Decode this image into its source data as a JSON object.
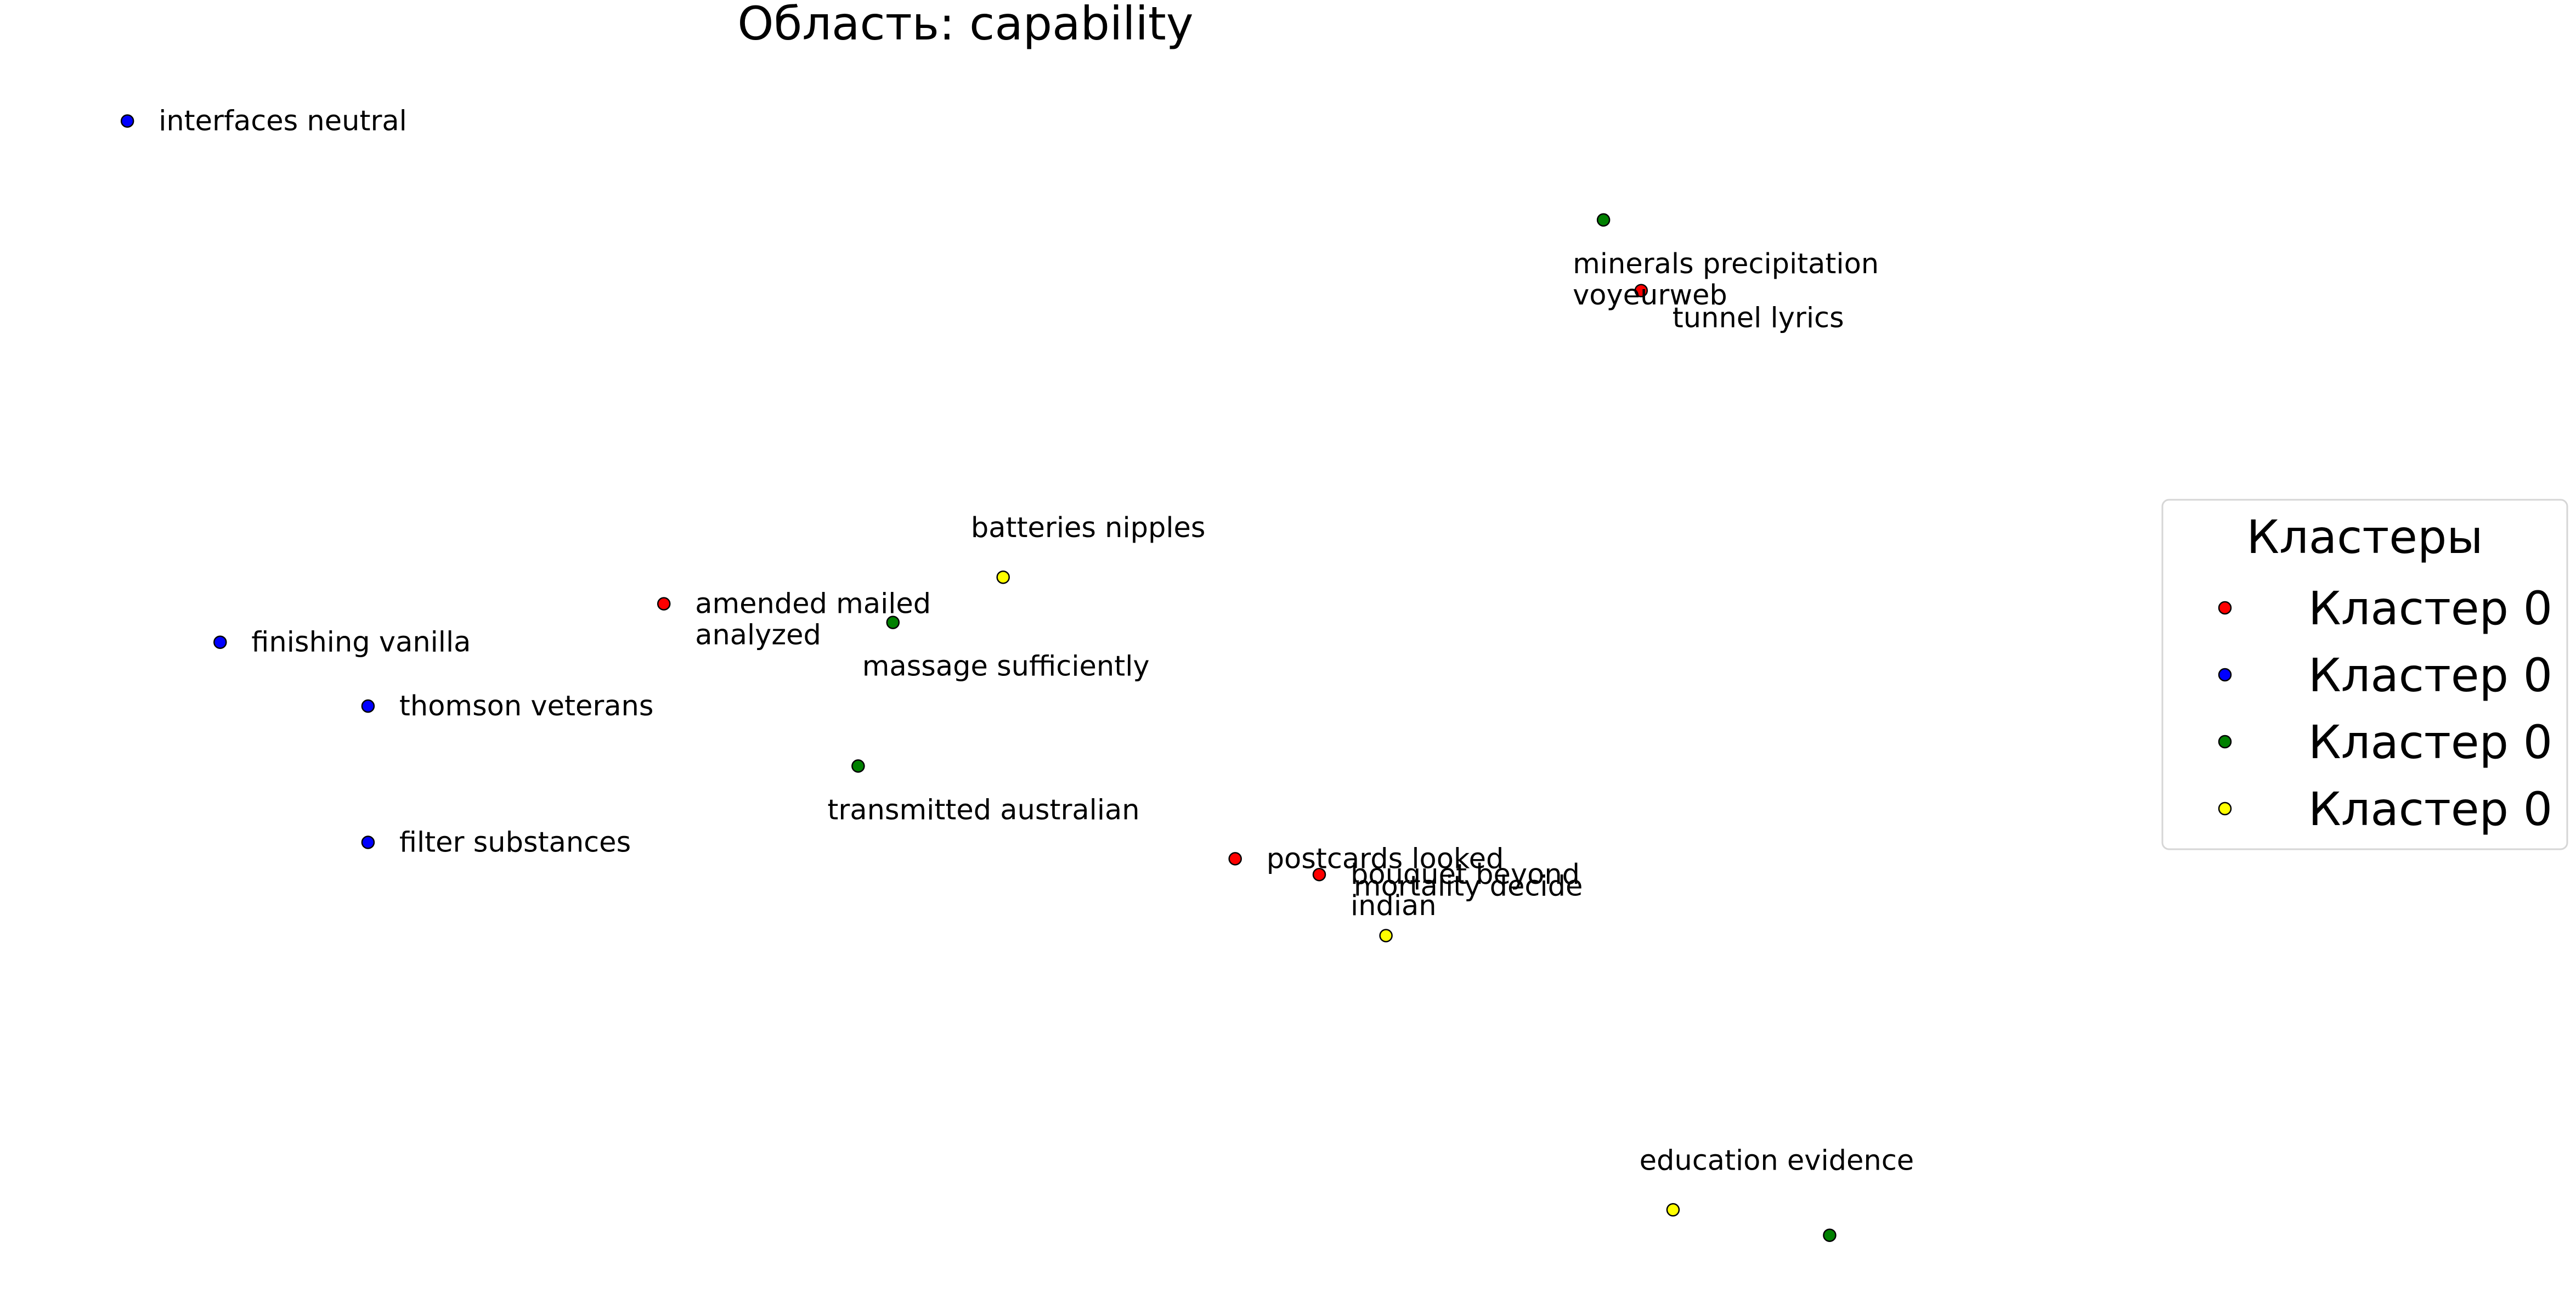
{
  "chart_data": {
    "type": "scatter",
    "title": "Область: capability",
    "xlabel": "",
    "ylabel": "",
    "grid": false,
    "axes_visible": false,
    "legend": {
      "title": "Кластеры",
      "placement": "right",
      "entries": [
        {
          "label": "Кластер 0",
          "color": "#ff0000"
        },
        {
          "label": "Кластер 0",
          "color": "#0000ff"
        },
        {
          "label": "Кластер 0",
          "color": "#008000"
        },
        {
          "label": "Кластер 0",
          "color": "#ffff00"
        }
      ]
    },
    "series": [
      {
        "color": "#ff0000",
        "points": [
          {
            "x": 13.3,
            "y": 88.1,
            "label": "tunnel lyrics"
          },
          {
            "x": -20.4,
            "y": 32.7,
            "label": "amended mailed\nanalyzed"
          },
          {
            "x": -0.7,
            "y": -12.4,
            "label": "postcards looked"
          },
          {
            "x": 2.2,
            "y": -15.2,
            "label": "bouquet beyond\nindian"
          }
        ]
      },
      {
        "color": "#0000ff",
        "points": [
          {
            "x": -38.9,
            "y": 118.1,
            "label": "interfaces neutral"
          },
          {
            "x": -35.7,
            "y": 25.9,
            "label": "finishing vanilla"
          },
          {
            "x": -30.6,
            "y": 14.6,
            "label": "thomson veterans"
          },
          {
            "x": -30.6,
            "y": -9.5,
            "label": "filter substances"
          }
        ]
      },
      {
        "color": "#008000",
        "points": [
          {
            "x": 12.0,
            "y": 100.6,
            "label": "minerals precipitation\nvoyeurweb"
          },
          {
            "x": -12.5,
            "y": 29.4,
            "label": "massage sufficiently"
          },
          {
            "x": -13.7,
            "y": 4.0,
            "label": "transmitted australian"
          },
          {
            "x": 19.8,
            "y": -79.0,
            "label": ""
          }
        ]
      },
      {
        "color": "#ffff00",
        "points": [
          {
            "x": -8.7,
            "y": 37.4,
            "label": "batteries nipples"
          },
          {
            "x": 4.5,
            "y": -26.0,
            "label": "mortality decide"
          },
          {
            "x": 14.4,
            "y": -74.5,
            "label": "education evidence"
          }
        ]
      }
    ]
  }
}
